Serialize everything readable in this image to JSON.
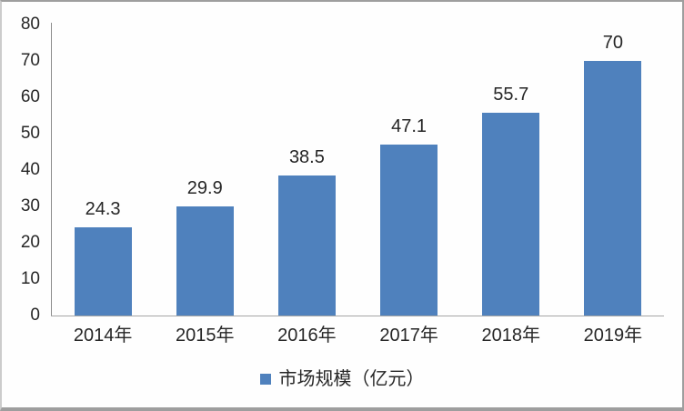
{
  "chart_data": {
    "type": "bar",
    "title": "",
    "categories": [
      "2014年",
      "2015年",
      "2016年",
      "2017年",
      "2018年",
      "2019年"
    ],
    "values": [
      24.3,
      29.9,
      38.5,
      47.1,
      55.7,
      70
    ],
    "data_labels": [
      "24.3",
      "29.9",
      "38.5",
      "47.1",
      "55.7",
      "70"
    ],
    "legend": "市场规模（亿元）",
    "legend_position": "bottom",
    "legend_swatch": "square-icon",
    "xlabel": "",
    "ylabel": "",
    "y_ticks": [
      0,
      10,
      20,
      30,
      40,
      50,
      60,
      70,
      80
    ],
    "ylim": [
      0,
      80
    ],
    "grid": "off",
    "colors": {
      "bar": "#4F81BD",
      "axis": "#9A9A9A",
      "text": "#262626",
      "background": "#FEFEFE",
      "frame_border": "#9E9E9E"
    }
  }
}
